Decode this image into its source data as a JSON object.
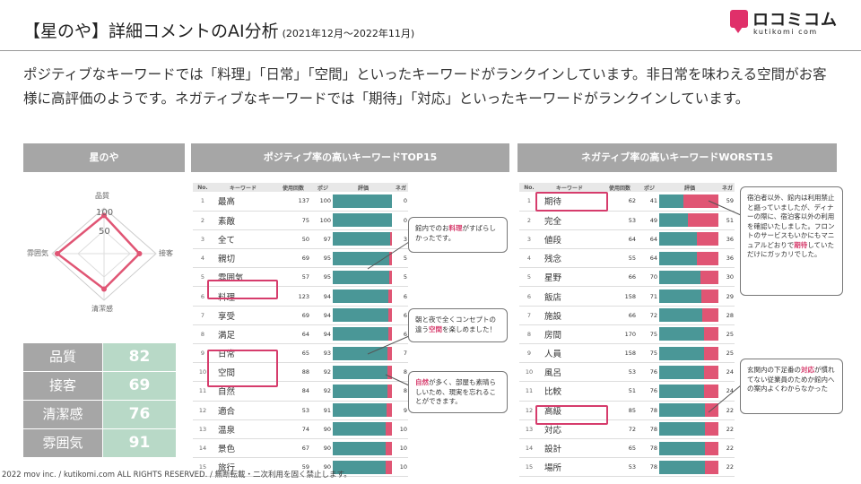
{
  "header": {
    "title": "【星のや】詳細コメントのAI分析",
    "period": "(2021年12月～2022年11月)",
    "logo_text": "ロコミコム",
    "logo_sub": "kutikomi com"
  },
  "description": "ポジティブなキーワードでは「料理」「日常」「空間」といったキーワードがランクインしています。非日常を味わえる空間がお客様に高評価のようです。ネガティブなキーワードでは「期待」「対応」といったキーワードがランクインしています。",
  "section_headers": {
    "hotel": "星のや",
    "positive": "ポジティブ率の高いキーワードTOP15",
    "negative": "ネガティブ率の高いキーワードWORST15"
  },
  "radar": {
    "axes": [
      "品質",
      "接客",
      "清潔感",
      "雰囲気"
    ],
    "tick_100": "100",
    "tick_50": "50"
  },
  "scores": [
    {
      "label": "品質",
      "value": "82"
    },
    {
      "label": "接客",
      "value": "69"
    },
    {
      "label": "清潔感",
      "value": "76"
    },
    {
      "label": "雰囲気",
      "value": "91"
    }
  ],
  "table_headers": {
    "no": "No.",
    "keyword": "キーワード",
    "count": "使用回数",
    "pos": "ポジ",
    "eval": "評価",
    "neg": "ネガ"
  },
  "positive_rows": [
    {
      "no": "1",
      "word": "最高",
      "count": "137",
      "pos": "100",
      "neg": "0",
      "ratio": 1.0
    },
    {
      "no": "2",
      "word": "素敵",
      "count": "75",
      "pos": "100",
      "neg": "0",
      "ratio": 1.0
    },
    {
      "no": "3",
      "word": "全て",
      "count": "50",
      "pos": "97",
      "neg": "3",
      "ratio": 0.97
    },
    {
      "no": "4",
      "word": "親切",
      "count": "69",
      "pos": "95",
      "neg": "5",
      "ratio": 0.95
    },
    {
      "no": "5",
      "word": "雰囲気",
      "count": "57",
      "pos": "95",
      "neg": "5",
      "ratio": 0.95
    },
    {
      "no": "6",
      "word": "料理",
      "count": "123",
      "pos": "94",
      "neg": "6",
      "ratio": 0.94
    },
    {
      "no": "7",
      "word": "享受",
      "count": "69",
      "pos": "94",
      "neg": "6",
      "ratio": 0.94
    },
    {
      "no": "8",
      "word": "満足",
      "count": "64",
      "pos": "94",
      "neg": "6",
      "ratio": 0.94
    },
    {
      "no": "9",
      "word": "日常",
      "count": "65",
      "pos": "93",
      "neg": "7",
      "ratio": 0.93
    },
    {
      "no": "10",
      "word": "空間",
      "count": "88",
      "pos": "92",
      "neg": "8",
      "ratio": 0.92
    },
    {
      "no": "11",
      "word": "自然",
      "count": "84",
      "pos": "92",
      "neg": "8",
      "ratio": 0.92
    },
    {
      "no": "12",
      "word": "適合",
      "count": "53",
      "pos": "91",
      "neg": "9",
      "ratio": 0.91
    },
    {
      "no": "13",
      "word": "温泉",
      "count": "74",
      "pos": "90",
      "neg": "10",
      "ratio": 0.9
    },
    {
      "no": "14",
      "word": "景色",
      "count": "67",
      "pos": "90",
      "neg": "10",
      "ratio": 0.9
    },
    {
      "no": "15",
      "word": "旅行",
      "count": "59",
      "pos": "90",
      "neg": "10",
      "ratio": 0.9
    }
  ],
  "negative_rows": [
    {
      "no": "1",
      "word": "期待",
      "count": "62",
      "pos": "41",
      "neg": "59",
      "ratio": 0.41
    },
    {
      "no": "2",
      "word": "完全",
      "count": "53",
      "pos": "49",
      "neg": "51",
      "ratio": 0.49
    },
    {
      "no": "3",
      "word": "値段",
      "count": "64",
      "pos": "64",
      "neg": "36",
      "ratio": 0.64
    },
    {
      "no": "4",
      "word": "残念",
      "count": "55",
      "pos": "64",
      "neg": "36",
      "ratio": 0.64
    },
    {
      "no": "5",
      "word": "星野",
      "count": "66",
      "pos": "70",
      "neg": "30",
      "ratio": 0.7
    },
    {
      "no": "6",
      "word": "飯店",
      "count": "158",
      "pos": "71",
      "neg": "29",
      "ratio": 0.71
    },
    {
      "no": "7",
      "word": "施設",
      "count": "66",
      "pos": "72",
      "neg": "28",
      "ratio": 0.72
    },
    {
      "no": "8",
      "word": "房間",
      "count": "170",
      "pos": "75",
      "neg": "25",
      "ratio": 0.75
    },
    {
      "no": "9",
      "word": "人員",
      "count": "158",
      "pos": "75",
      "neg": "25",
      "ratio": 0.75
    },
    {
      "no": "10",
      "word": "風呂",
      "count": "53",
      "pos": "76",
      "neg": "24",
      "ratio": 0.76
    },
    {
      "no": "11",
      "word": "比較",
      "count": "51",
      "pos": "76",
      "neg": "24",
      "ratio": 0.76
    },
    {
      "no": "12",
      "word": "高級",
      "count": "85",
      "pos": "78",
      "neg": "22",
      "ratio": 0.78
    },
    {
      "no": "13",
      "word": "対応",
      "count": "72",
      "pos": "78",
      "neg": "22",
      "ratio": 0.78
    },
    {
      "no": "14",
      "word": "設計",
      "count": "65",
      "pos": "78",
      "neg": "22",
      "ratio": 0.78
    },
    {
      "no": "15",
      "word": "場所",
      "count": "53",
      "pos": "78",
      "neg": "22",
      "ratio": 0.78
    }
  ],
  "comments": {
    "c1_pre": "館内でのお",
    "c1_hl": "料理",
    "c1_post": "がすばらしかったです。",
    "c2_pre": "朝と夜で全くコンセプトの違う",
    "c2_hl": "空間",
    "c2_post": "を楽しめました！",
    "c3_hl": "自然",
    "c3_post": "が多く、部屋も素晴らしいため、現実を忘れることができます。",
    "c4_pre": "宿泊者以外、館内は利用禁止と謳っていましたが、ディナーの際に、宿泊客以外の利用を確認いたしました。フロントのサービスもいかにもマニュアルどおりで",
    "c4_hl": "期待",
    "c4_post": "していただけにガッカリでした。",
    "c5_pre": "玄関内の下足番の",
    "c5_hl": "対応",
    "c5_post": "が慣れてない従業員のためか館内への案内よくわからなかった"
  },
  "footer": "2022 mov inc. / kutikomi.com ALL RIGHTS RESERVED. / 無断転載・二次利用を固く禁止します。",
  "colors": {
    "accent": "#d63c6c",
    "positive_bar": "#4a9797",
    "negative_bar": "#e05574",
    "header_gray": "#a6a6a6",
    "score_green": "#b8d9c7"
  }
}
